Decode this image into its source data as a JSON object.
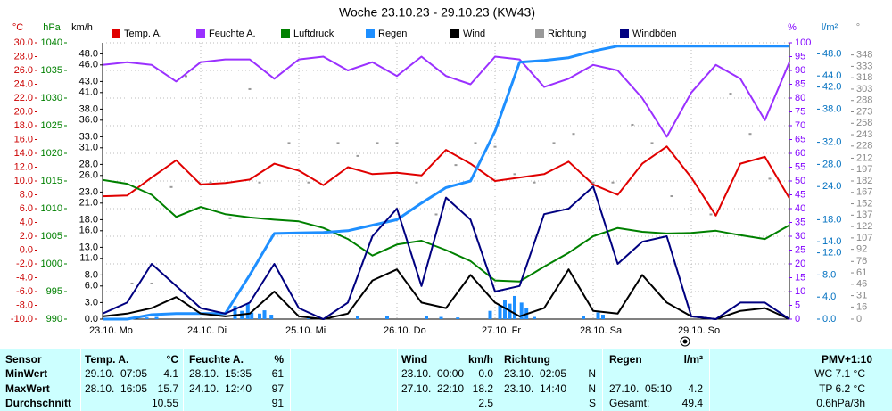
{
  "chart_data": {
    "type": "line",
    "title": "Woche 23.10.23 - 29.10.23 (KW43)",
    "xlim": [
      0,
      7
    ],
    "xticks": [
      {
        "value": 0,
        "label": "23.10. Mo"
      },
      {
        "value": 1,
        "label": "24.10. Di"
      },
      {
        "value": 2,
        "label": "25.10. Mi"
      },
      {
        "value": 3,
        "label": "26.10. Do"
      },
      {
        "value": 4,
        "label": "27.10. Fr"
      },
      {
        "value": 5,
        "label": "28.10. Sa"
      },
      {
        "value": 6,
        "label": "29.10. So"
      }
    ],
    "grid": true,
    "axes": {
      "temp": {
        "unit": "°C",
        "color": "#cc0000",
        "side": "left",
        "ylim": [
          -10,
          30
        ],
        "yticks": [
          {
            "value": -10,
            "label": "-10.0"
          },
          {
            "value": -8,
            "label": "-8.0"
          },
          {
            "value": -6,
            "label": "-6.0"
          },
          {
            "value": -4,
            "label": "-4.0"
          },
          {
            "value": -2,
            "label": "-2.0"
          },
          {
            "value": 0,
            "label": "0.0"
          },
          {
            "value": 2,
            "label": "2.0"
          },
          {
            "value": 4,
            "label": "4.0"
          },
          {
            "value": 6,
            "label": "6.0"
          },
          {
            "value": 8,
            "label": "8.0"
          },
          {
            "value": 10,
            "label": "10.0"
          },
          {
            "value": 12,
            "label": "12.0"
          },
          {
            "value": 14,
            "label": "14.0"
          },
          {
            "value": 16,
            "label": "16.0"
          },
          {
            "value": 18,
            "label": "18.0"
          },
          {
            "value": 20,
            "label": "20.0"
          },
          {
            "value": 22,
            "label": "22.0"
          },
          {
            "value": 24,
            "label": "24.0"
          },
          {
            "value": 26,
            "label": "26.0"
          },
          {
            "value": 28,
            "label": "28.0"
          },
          {
            "value": 30,
            "label": "30.0"
          }
        ]
      },
      "pressure": {
        "unit": "hPa",
        "color": "#008000",
        "side": "left",
        "ylim": [
          990,
          1040
        ],
        "yticks": [
          990,
          995,
          1000,
          1005,
          1010,
          1015,
          1020,
          1025,
          1030,
          1035,
          1040
        ]
      },
      "wind": {
        "unit": "km/h",
        "color": "#000000",
        "side": "left",
        "ylim": [
          0,
          50
        ],
        "yticks": [
          {
            "value": 0,
            "label": "0.0"
          },
          {
            "value": 3,
            "label": "3.0"
          },
          {
            "value": 6,
            "label": "6.0"
          },
          {
            "value": 8,
            "label": "8.0"
          },
          {
            "value": 11,
            "label": "11.0"
          },
          {
            "value": 13,
            "label": "13.0"
          },
          {
            "value": 16,
            "label": "16.0"
          },
          {
            "value": 18,
            "label": "18.0"
          },
          {
            "value": 21,
            "label": "21.0"
          },
          {
            "value": 23,
            "label": "23.0"
          },
          {
            "value": 26,
            "label": "26.0"
          },
          {
            "value": 28,
            "label": "28.0"
          },
          {
            "value": 31,
            "label": "31.0"
          },
          {
            "value": 33,
            "label": "33.0"
          },
          {
            "value": 36,
            "label": "36.0"
          },
          {
            "value": 38,
            "label": "38.0"
          },
          {
            "value": 41,
            "label": "41.0"
          },
          {
            "value": 43,
            "label": "43.0"
          },
          {
            "value": 46,
            "label": "46.0"
          },
          {
            "value": 48,
            "label": "48.0"
          }
        ]
      },
      "humidity": {
        "unit": "%",
        "color": "#8000ff",
        "side": "right",
        "ylim": [
          0,
          100
        ],
        "yticks": [
          0,
          5,
          10,
          15,
          20,
          25,
          30,
          35,
          40,
          45,
          50,
          55,
          60,
          65,
          70,
          75,
          80,
          85,
          90,
          95,
          100
        ]
      },
      "rain": {
        "unit": "l/m²",
        "color": "#0070c0",
        "side": "right",
        "ylim": [
          0,
          50
        ],
        "yticks": [
          {
            "value": 0,
            "label": "0.0"
          },
          {
            "value": 4,
            "label": "4.0"
          },
          {
            "value": 8,
            "label": "8.0"
          },
          {
            "value": 12,
            "label": "12.0"
          },
          {
            "value": 14,
            "label": "14.0"
          },
          {
            "value": 18,
            "label": "18.0"
          },
          {
            "value": 24,
            "label": "24.0"
          },
          {
            "value": 28,
            "label": "28.0"
          },
          {
            "value": 32,
            "label": "32.0"
          },
          {
            "value": 38,
            "label": "38.0"
          },
          {
            "value": 42,
            "label": "42.0"
          },
          {
            "value": 44,
            "label": "44.0"
          },
          {
            "value": 48,
            "label": "48.0"
          }
        ]
      },
      "direction": {
        "unit": "°",
        "color": "#888888",
        "side": "right",
        "ylim": [
          0,
          364
        ],
        "yticks": [
          0,
          16,
          31,
          46,
          61,
          76,
          92,
          107,
          122,
          137,
          152,
          167,
          182,
          197,
          212,
          228,
          243,
          258,
          273,
          288,
          303,
          318,
          333,
          348
        ]
      }
    },
    "x": [
      0,
      0.25,
      0.5,
      0.75,
      1,
      1.25,
      1.5,
      1.75,
      2,
      2.25,
      2.5,
      2.75,
      3,
      3.25,
      3.5,
      3.75,
      4,
      4.25,
      4.5,
      4.75,
      5,
      5.25,
      5.5,
      5.75,
      6,
      6.25,
      6.5,
      6.75,
      7
    ],
    "series": [
      {
        "name": "Temp. A.",
        "color": "#e00000",
        "axis": "temp",
        "values": [
          7.8,
          7.9,
          10.5,
          13.0,
          9.5,
          9.7,
          10.2,
          12.5,
          11.5,
          9.4,
          12.0,
          11.0,
          11.2,
          10.8,
          14.5,
          12.5,
          10.0,
          10.5,
          11.0,
          12.8,
          9.5,
          8.0,
          12.5,
          15.0,
          10.5,
          5.0,
          12.5,
          13.5,
          7.5
        ]
      },
      {
        "name": "Feuchte A.",
        "color": "#9a30ff",
        "axis": "humidity",
        "values": [
          92,
          93,
          92,
          86,
          93,
          94,
          94,
          87,
          94,
          95,
          90,
          93,
          88,
          95,
          88,
          85,
          95,
          94,
          84,
          87,
          92,
          90,
          80,
          66,
          82,
          92,
          87,
          72,
          93
        ]
      },
      {
        "name": "Luftdruck",
        "color": "#008000",
        "axis": "pressure",
        "values": [
          1015.2,
          1014.5,
          1012.5,
          1008.5,
          1010.3,
          1009.0,
          1008.4,
          1008.0,
          1007.7,
          1006.5,
          1004.5,
          1001.5,
          1003.5,
          1004.2,
          1002.5,
          1000.5,
          997.0,
          996.8,
          999.5,
          1002.0,
          1005.0,
          1006.5,
          1005.8,
          1005.5,
          1005.6,
          1006.0,
          1005.2,
          1004.5,
          1007.0
        ]
      },
      {
        "name": "Regen",
        "color": "#1e8fff",
        "axis": "rain",
        "values": [
          0,
          0,
          0.8,
          1.0,
          1.0,
          1.0,
          8.0,
          15.5,
          15.6,
          15.7,
          16.0,
          17.0,
          18.0,
          21.0,
          23.8,
          25.0,
          34.0,
          46.5,
          46.8,
          47.3,
          48.5,
          49.4,
          49.4,
          49.4,
          49.4,
          49.4,
          49.4,
          49.4,
          49.4
        ],
        "bar_x": [
          0.45,
          0.55,
          1.35,
          1.42,
          1.48,
          1.52,
          1.6,
          1.65,
          1.72,
          2.1,
          2.6,
          2.9,
          3.3,
          3.45,
          3.62,
          3.95,
          4.05,
          4.1,
          4.15,
          4.2,
          4.27,
          4.32,
          4.4,
          4.9,
          5.05,
          5.1
        ],
        "bar_values": [
          0.3,
          0.4,
          2.4,
          1.5,
          2.8,
          1.2,
          1.0,
          1.6,
          0.8,
          0.4,
          0.5,
          0.6,
          0.5,
          0.4,
          0.3,
          1.5,
          2.5,
          3.5,
          2.8,
          4.2,
          3.0,
          2.0,
          0.4,
          0.6,
          1.2,
          0.8
        ]
      },
      {
        "name": "Wind",
        "color": "#000000",
        "axis": "wind",
        "values": [
          0.5,
          1,
          2,
          4,
          1,
          0.5,
          1,
          5,
          0.5,
          0,
          1,
          7,
          9,
          3,
          2,
          8,
          3,
          0.5,
          2,
          9,
          1.5,
          1,
          8,
          3,
          0.5,
          0,
          1.5,
          2,
          0
        ]
      },
      {
        "name": "Richtung",
        "color": "#999999",
        "axis": "direction",
        "scatter": true,
        "x": [
          0.3,
          0.5,
          0.7,
          0.85,
          1.1,
          1.3,
          1.5,
          1.6,
          1.9,
          2.1,
          2.4,
          2.6,
          2.8,
          3.0,
          3.2,
          3.4,
          3.6,
          3.8,
          4.0,
          4.2,
          4.4,
          4.6,
          4.8,
          5.0,
          5.2,
          5.4,
          5.6,
          5.8,
          6.2,
          6.4,
          6.6,
          6.8
        ],
        "values": [
          47,
          47,
          174,
          320,
          180,
          133,
          303,
          180,
          232,
          180,
          232,
          215,
          232,
          232,
          180,
          138,
          203,
          232,
          227,
          191,
          180,
          232,
          244,
          180,
          180,
          256,
          232,
          162,
          138,
          297,
          244,
          185
        ]
      },
      {
        "name": "Windböen",
        "color": "#000080",
        "axis": "wind",
        "values": [
          1,
          3,
          10,
          6,
          2,
          1,
          3,
          10,
          2,
          0,
          3,
          15,
          20,
          6,
          22,
          18,
          5,
          6,
          19,
          20,
          24,
          10,
          14,
          15,
          0.5,
          0,
          3,
          3,
          0
        ]
      }
    ]
  },
  "table": {
    "row_labels": [
      "Sensor",
      "MinWert",
      "MaxWert",
      "Durchschnitt"
    ],
    "temp": {
      "title": "Temp. A.",
      "unit": "°C",
      "min": {
        "time": "29.10.  07:05",
        "value": "4.1"
      },
      "max": {
        "time": "28.10.  16:05",
        "value": "15.7"
      },
      "avg": "10.55"
    },
    "humidity": {
      "title": "Feuchte A.",
      "unit": "%",
      "min": {
        "time": "28.10.  15:35",
        "value": "61"
      },
      "max": {
        "time": "24.10.  12:40",
        "value": "97"
      },
      "avg": "91"
    },
    "wind": {
      "title": "Wind",
      "unit": "km/h",
      "min": {
        "time": "23.10.  00:00",
        "value": "0.0"
      },
      "max": {
        "time": "27.10.  22:10",
        "value": "18.2"
      },
      "avg": "2.5"
    },
    "direction": {
      "title": "Richtung",
      "min": {
        "time": "23.10.  02:05",
        "value": "N"
      },
      "max": {
        "time": "23.10.  14:40",
        "value": "N"
      },
      "avg": "S"
    },
    "rain": {
      "title": "Regen",
      "unit": "l/m²",
      "max": {
        "time": "27.10.  05:10",
        "value": "4.2"
      },
      "total": {
        "label": "Gesamt:",
        "value": "49.4"
      }
    },
    "extra": {
      "title": "PMV+1:10",
      "lines": [
        "WC 7.1 °C",
        "TP 6.2 °C",
        "0.6hPa/3h"
      ]
    }
  }
}
